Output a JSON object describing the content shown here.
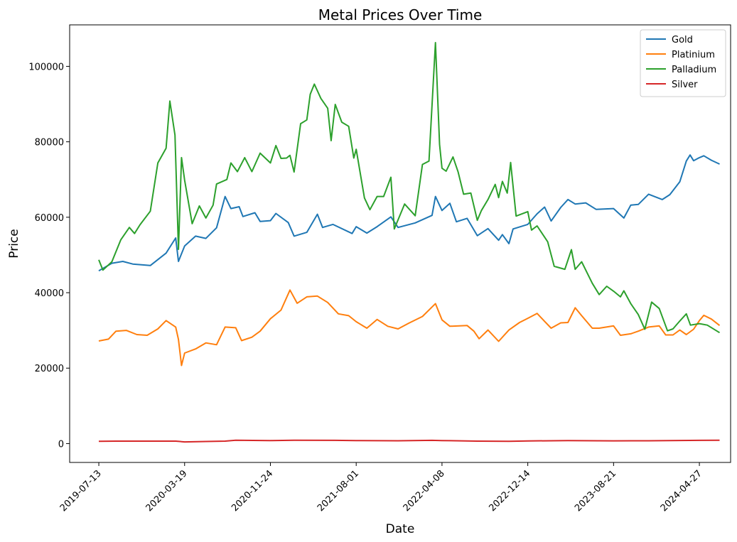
{
  "chart_data": {
    "type": "line",
    "title": "Metal Prices Over Time",
    "xlabel": "Date",
    "ylabel": "Price",
    "xlim": [
      "2019-04-19",
      "2024-07-27"
    ],
    "ylim": [
      -5000,
      111000
    ],
    "grid": false,
    "legend_position": "top-right",
    "x_ticks": [
      "2019-07-13",
      "2020-03-19",
      "2020-11-24",
      "2021-08-01",
      "2022-04-08",
      "2022-12-14",
      "2023-08-21",
      "2024-04-27"
    ],
    "y_ticks": [
      0,
      20000,
      40000,
      60000,
      80000,
      100000
    ],
    "series": [
      {
        "name": "Gold",
        "color": "#1f77b4",
        "points": [
          [
            "2019-07-13",
            45800
          ],
          [
            "2019-08-20",
            47800
          ],
          [
            "2019-09-21",
            48300
          ],
          [
            "2019-10-20",
            47600
          ],
          [
            "2019-12-10",
            47200
          ],
          [
            "2020-01-25",
            50500
          ],
          [
            "2020-02-22",
            54500
          ],
          [
            "2020-03-01",
            48300
          ],
          [
            "2020-03-19",
            52400
          ],
          [
            "2020-04-20",
            55000
          ],
          [
            "2020-05-20",
            54400
          ],
          [
            "2020-06-20",
            57200
          ],
          [
            "2020-07-15",
            65500
          ],
          [
            "2020-08-01",
            62300
          ],
          [
            "2020-08-25",
            62800
          ],
          [
            "2020-09-05",
            60200
          ],
          [
            "2020-10-10",
            61200
          ],
          [
            "2020-10-25",
            58900
          ],
          [
            "2020-11-24",
            59100
          ],
          [
            "2020-12-10",
            61000
          ],
          [
            "2021-01-15",
            58600
          ],
          [
            "2021-02-01",
            55000
          ],
          [
            "2021-03-10",
            56000
          ],
          [
            "2021-04-10",
            60800
          ],
          [
            "2021-04-25",
            57300
          ],
          [
            "2021-05-25",
            58100
          ],
          [
            "2021-07-20",
            55700
          ],
          [
            "2021-08-01",
            57500
          ],
          [
            "2021-09-01",
            55800
          ],
          [
            "2021-10-01",
            57500
          ],
          [
            "2021-11-10",
            60100
          ],
          [
            "2021-12-01",
            57300
          ],
          [
            "2022-01-20",
            58500
          ],
          [
            "2022-03-10",
            60500
          ],
          [
            "2022-03-20",
            65500
          ],
          [
            "2022-04-08",
            61800
          ],
          [
            "2022-05-01",
            63700
          ],
          [
            "2022-05-20",
            58800
          ],
          [
            "2022-06-20",
            59700
          ],
          [
            "2022-07-20",
            55100
          ],
          [
            "2022-08-20",
            57000
          ],
          [
            "2022-09-20",
            53900
          ],
          [
            "2022-10-01",
            55400
          ],
          [
            "2022-10-20",
            53000
          ],
          [
            "2022-11-01",
            56900
          ],
          [
            "2022-12-14",
            58100
          ],
          [
            "2023-01-10",
            60900
          ],
          [
            "2023-02-01",
            62700
          ],
          [
            "2023-02-20",
            59000
          ],
          [
            "2023-03-20",
            62600
          ],
          [
            "2023-04-10",
            64700
          ],
          [
            "2023-05-01",
            63500
          ],
          [
            "2023-06-01",
            63800
          ],
          [
            "2023-07-01",
            62100
          ],
          [
            "2023-08-21",
            62300
          ],
          [
            "2023-09-20",
            59800
          ],
          [
            "2023-10-10",
            63200
          ],
          [
            "2023-11-01",
            63400
          ],
          [
            "2023-12-01",
            66100
          ],
          [
            "2024-01-10",
            64700
          ],
          [
            "2024-02-01",
            66000
          ],
          [
            "2024-03-01",
            69400
          ],
          [
            "2024-03-20",
            74900
          ],
          [
            "2024-03-31",
            76500
          ],
          [
            "2024-04-10",
            75000
          ],
          [
            "2024-04-27",
            75800
          ],
          [
            "2024-05-10",
            76300
          ],
          [
            "2024-06-01",
            75100
          ],
          [
            "2024-06-25",
            74100
          ]
        ]
      },
      {
        "name": "Platinium",
        "color": "#ff7f0e",
        "points": [
          [
            "2019-07-13",
            27200
          ],
          [
            "2019-08-10",
            27700
          ],
          [
            "2019-09-01",
            29800
          ],
          [
            "2019-10-01",
            30000
          ],
          [
            "2019-11-01",
            28900
          ],
          [
            "2019-12-01",
            28700
          ],
          [
            "2020-01-01",
            30400
          ],
          [
            "2020-01-25",
            32600
          ],
          [
            "2020-02-22",
            30900
          ],
          [
            "2020-03-01",
            27600
          ],
          [
            "2020-03-10",
            20700
          ],
          [
            "2020-03-19",
            24000
          ],
          [
            "2020-04-20",
            25100
          ],
          [
            "2020-05-20",
            26700
          ],
          [
            "2020-06-20",
            26200
          ],
          [
            "2020-07-15",
            30900
          ],
          [
            "2020-08-15",
            30700
          ],
          [
            "2020-09-01",
            27300
          ],
          [
            "2020-10-01",
            28200
          ],
          [
            "2020-10-25",
            29800
          ],
          [
            "2020-11-24",
            33100
          ],
          [
            "2020-12-25",
            35400
          ],
          [
            "2021-01-20",
            40700
          ],
          [
            "2021-02-10",
            37200
          ],
          [
            "2021-03-10",
            38900
          ],
          [
            "2021-04-10",
            39100
          ],
          [
            "2021-05-10",
            37400
          ],
          [
            "2021-06-10",
            34400
          ],
          [
            "2021-07-10",
            33900
          ],
          [
            "2021-08-01",
            32300
          ],
          [
            "2021-09-01",
            30600
          ],
          [
            "2021-10-01",
            32900
          ],
          [
            "2021-11-01",
            31100
          ],
          [
            "2021-12-01",
            30400
          ],
          [
            "2022-01-01",
            31900
          ],
          [
            "2022-02-10",
            33700
          ],
          [
            "2022-03-20",
            37100
          ],
          [
            "2022-04-08",
            32800
          ],
          [
            "2022-05-01",
            31100
          ],
          [
            "2022-06-20",
            31300
          ],
          [
            "2022-07-10",
            29800
          ],
          [
            "2022-07-25",
            27800
          ],
          [
            "2022-08-20",
            30100
          ],
          [
            "2022-09-20",
            27100
          ],
          [
            "2022-10-20",
            30100
          ],
          [
            "2022-11-20",
            32100
          ],
          [
            "2022-12-14",
            33200
          ],
          [
            "2023-01-10",
            34500
          ],
          [
            "2023-02-01",
            32400
          ],
          [
            "2023-02-20",
            30600
          ],
          [
            "2023-03-20",
            32000
          ],
          [
            "2023-04-10",
            32100
          ],
          [
            "2023-05-01",
            36000
          ],
          [
            "2023-05-20",
            33900
          ],
          [
            "2023-06-20",
            30600
          ],
          [
            "2023-07-10",
            30600
          ],
          [
            "2023-08-21",
            31200
          ],
          [
            "2023-09-10",
            28700
          ],
          [
            "2023-10-10",
            29100
          ],
          [
            "2023-11-01",
            29800
          ],
          [
            "2023-12-01",
            30900
          ],
          [
            "2024-01-01",
            31200
          ],
          [
            "2024-01-20",
            28800
          ],
          [
            "2024-02-10",
            28800
          ],
          [
            "2024-03-01",
            30100
          ],
          [
            "2024-03-20",
            28900
          ],
          [
            "2024-04-10",
            30300
          ],
          [
            "2024-04-27",
            32600
          ],
          [
            "2024-05-10",
            34000
          ],
          [
            "2024-06-01",
            33000
          ],
          [
            "2024-06-25",
            31300
          ]
        ]
      },
      {
        "name": "Palladium",
        "color": "#2ca02c",
        "points": [
          [
            "2019-07-13",
            48700
          ],
          [
            "2019-07-25",
            46000
          ],
          [
            "2019-08-20",
            48200
          ],
          [
            "2019-09-15",
            54000
          ],
          [
            "2019-10-10",
            57300
          ],
          [
            "2019-10-25",
            55700
          ],
          [
            "2019-11-10",
            58000
          ],
          [
            "2019-12-10",
            61600
          ],
          [
            "2020-01-01",
            74400
          ],
          [
            "2020-01-25",
            78300
          ],
          [
            "2020-02-05",
            90800
          ],
          [
            "2020-02-20",
            81800
          ],
          [
            "2020-03-01",
            51500
          ],
          [
            "2020-03-10",
            75800
          ],
          [
            "2020-03-19",
            69800
          ],
          [
            "2020-04-10",
            58300
          ],
          [
            "2020-05-01",
            63000
          ],
          [
            "2020-05-20",
            59800
          ],
          [
            "2020-06-10",
            63200
          ],
          [
            "2020-06-20",
            68800
          ],
          [
            "2020-07-20",
            70000
          ],
          [
            "2020-08-01",
            74400
          ],
          [
            "2020-08-20",
            72100
          ],
          [
            "2020-09-10",
            75800
          ],
          [
            "2020-10-01",
            72100
          ],
          [
            "2020-10-25",
            77000
          ],
          [
            "2020-11-24",
            74400
          ],
          [
            "2020-12-10",
            79000
          ],
          [
            "2020-12-25",
            75600
          ],
          [
            "2021-01-10",
            75700
          ],
          [
            "2021-01-20",
            76400
          ],
          [
            "2021-02-01",
            72000
          ],
          [
            "2021-02-20",
            84800
          ],
          [
            "2021-03-10",
            85800
          ],
          [
            "2021-03-20",
            92600
          ],
          [
            "2021-04-01",
            95300
          ],
          [
            "2021-04-20",
            91500
          ],
          [
            "2021-05-10",
            88900
          ],
          [
            "2021-05-20",
            80300
          ],
          [
            "2021-06-01",
            89900
          ],
          [
            "2021-06-20",
            85200
          ],
          [
            "2021-07-10",
            84100
          ],
          [
            "2021-07-25",
            75700
          ],
          [
            "2021-08-01",
            78000
          ],
          [
            "2021-08-25",
            65100
          ],
          [
            "2021-09-10",
            62000
          ],
          [
            "2021-10-01",
            65500
          ],
          [
            "2021-10-20",
            65500
          ],
          [
            "2021-11-10",
            70600
          ],
          [
            "2021-11-20",
            56900
          ],
          [
            "2021-12-20",
            63500
          ],
          [
            "2022-01-20",
            60400
          ],
          [
            "2022-02-10",
            74000
          ],
          [
            "2022-03-01",
            74900
          ],
          [
            "2022-03-20",
            106300
          ],
          [
            "2022-04-01",
            79300
          ],
          [
            "2022-04-08",
            73000
          ],
          [
            "2022-04-20",
            72200
          ],
          [
            "2022-05-10",
            76000
          ],
          [
            "2022-05-25",
            72000
          ],
          [
            "2022-06-10",
            66100
          ],
          [
            "2022-07-01",
            66400
          ],
          [
            "2022-07-20",
            59200
          ],
          [
            "2022-08-01",
            61800
          ],
          [
            "2022-08-20",
            64700
          ],
          [
            "2022-09-10",
            68700
          ],
          [
            "2022-09-20",
            65200
          ],
          [
            "2022-10-01",
            69500
          ],
          [
            "2022-10-15",
            66400
          ],
          [
            "2022-10-25",
            74500
          ],
          [
            "2022-11-10",
            60300
          ],
          [
            "2022-12-14",
            61500
          ],
          [
            "2022-12-25",
            56600
          ],
          [
            "2023-01-10",
            57700
          ],
          [
            "2023-02-10",
            53500
          ],
          [
            "2023-03-01",
            47000
          ],
          [
            "2023-04-01",
            46200
          ],
          [
            "2023-04-20",
            51400
          ],
          [
            "2023-05-01",
            46200
          ],
          [
            "2023-05-20",
            48200
          ],
          [
            "2023-06-20",
            42500
          ],
          [
            "2023-07-10",
            39500
          ],
          [
            "2023-08-01",
            41700
          ],
          [
            "2023-08-21",
            40400
          ],
          [
            "2023-09-10",
            38900
          ],
          [
            "2023-09-20",
            40500
          ],
          [
            "2023-10-10",
            37100
          ],
          [
            "2023-11-01",
            34200
          ],
          [
            "2023-11-20",
            30300
          ],
          [
            "2023-12-10",
            37500
          ],
          [
            "2024-01-01",
            35800
          ],
          [
            "2024-01-25",
            29900
          ],
          [
            "2024-02-10",
            30400
          ],
          [
            "2024-03-01",
            32500
          ],
          [
            "2024-03-20",
            34400
          ],
          [
            "2024-04-01",
            31400
          ],
          [
            "2024-04-27",
            31800
          ],
          [
            "2024-05-20",
            31400
          ],
          [
            "2024-06-25",
            29400
          ]
        ]
      },
      {
        "name": "Silver",
        "color": "#d62728",
        "points": [
          [
            "2019-07-13",
            600
          ],
          [
            "2019-09-01",
            650
          ],
          [
            "2019-12-01",
            650
          ],
          [
            "2020-02-22",
            650
          ],
          [
            "2020-03-19",
            450
          ],
          [
            "2020-05-20",
            550
          ],
          [
            "2020-07-15",
            650
          ],
          [
            "2020-08-15",
            900
          ],
          [
            "2020-11-24",
            800
          ],
          [
            "2021-02-01",
            900
          ],
          [
            "2021-06-01",
            850
          ],
          [
            "2021-08-01",
            800
          ],
          [
            "2021-12-01",
            750
          ],
          [
            "2022-03-10",
            850
          ],
          [
            "2022-04-08",
            800
          ],
          [
            "2022-07-20",
            650
          ],
          [
            "2022-10-20",
            620
          ],
          [
            "2022-12-14",
            700
          ],
          [
            "2023-04-10",
            780
          ],
          [
            "2023-08-21",
            720
          ],
          [
            "2023-12-01",
            750
          ],
          [
            "2024-04-27",
            850
          ],
          [
            "2024-06-25",
            900
          ]
        ]
      }
    ]
  }
}
